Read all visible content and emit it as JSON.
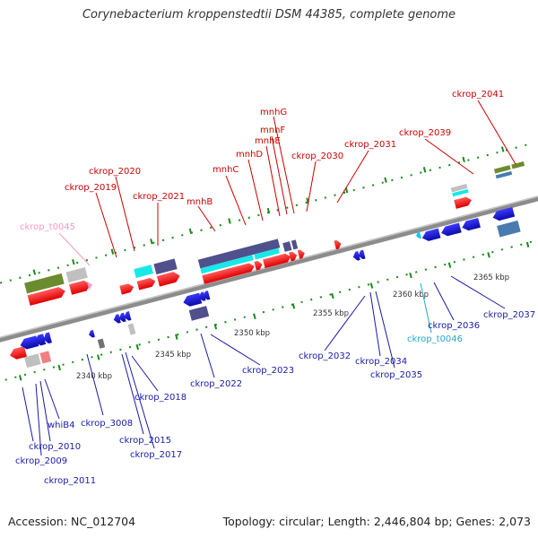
{
  "title": "Corynebacterium kroppenstedtii DSM 44385, complete genome",
  "footer": {
    "accession": "Accession: NC_012704",
    "summary": "Topology: circular; Length: 2,446,804 bp; Genes: 2,073"
  },
  "scale_labels": [
    "2340 kbp",
    "2345 kbp",
    "2350 kbp",
    "2355 kbp",
    "2360 kbp",
    "2365 kbp"
  ],
  "top_labels": [
    "ckrop_t0045",
    "ckrop_2019",
    "ckrop_2020",
    "ckrop_2021",
    "mnhB",
    "mnhC",
    "mnhD",
    "mnhE",
    "mnhF",
    "mnhG",
    "ckrop_2030",
    "ckrop_2031",
    "ckrop_2039",
    "ckrop_2041"
  ],
  "bottom_labels": [
    "whiB4",
    "ckrop_2010",
    "ckrop_2009",
    "ckrop_2011",
    "ckrop_3008",
    "ckrop_2015",
    "ckrop_2017",
    "ckrop_2018",
    "ckrop_2022",
    "ckrop_2023",
    "ckrop_2032",
    "ckrop_2034",
    "ckrop_2035",
    "ckrop_2036",
    "ckrop_t0046",
    "ckrop_2037"
  ],
  "colors": {
    "forward_cds": "#ff1a1a",
    "reverse_cds": "#1515d6",
    "orf": "#50508c",
    "rrna_like": "#18e8e8",
    "trna": "#f49ac0",
    "pseudo": "#c0c0c0",
    "olive": "#6b8c2e",
    "steel": "#4a7ab0",
    "backbone": "#8c8c8c",
    "tick_green": "#1a8a1a"
  }
}
